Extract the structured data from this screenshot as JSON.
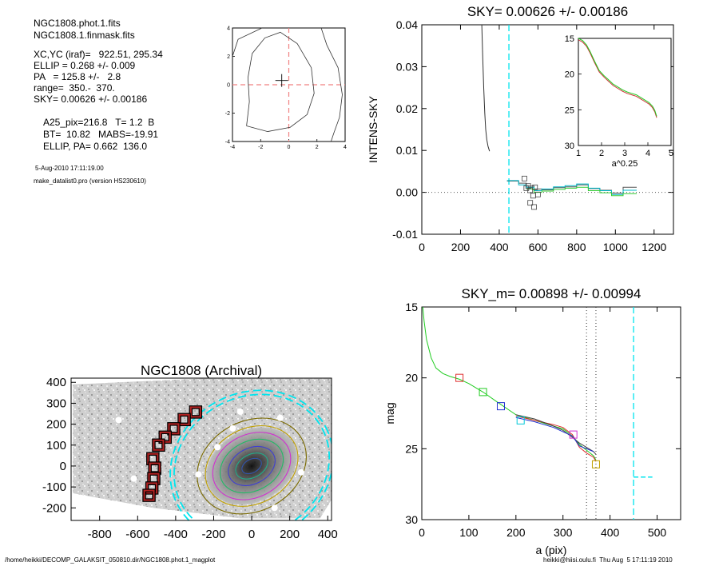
{
  "info": {
    "file1": "NGC1808.phot.1.fits",
    "file2": "NGC1808.1.finmask.fits",
    "xcyc": "XC,YC (iraf)=   922.51, 295.34",
    "ellip": "ELLIP = 0.268 +/- 0.009",
    "pa": "PA   = 125.8 +/-   2.8",
    "range": "range=  350.-  370.",
    "sky": "SKY= 0.00626 +/- 0.00186",
    "a25": "A25_pix=216.8   T= 1.2  B",
    "bt": "BT=  10.82   MABS=-19.91",
    "ellip_pa": "ELLIP, PA= 0.662  136.0",
    "date": "5-Aug-2010 17:11:19.00",
    "program": "make_datalist0.pro (version HS230610)"
  },
  "footer": {
    "left": "/home/heikki/DECOMP_GALAKSIT_050810.dir/NGC1808.phot.1_magplot",
    "right": "heikki@hiisi.oulu.fi  Thu Aug  5 17:11:19 2010"
  },
  "colors": {
    "sky_line": "#00e5ee",
    "red": "#e03030",
    "green": "#22cc22",
    "blue": "#2030d0",
    "magenta": "#d030d0",
    "olive": "#a09000",
    "dark_red": "#8b0000"
  },
  "chart_data": [
    {
      "id": "center-contour",
      "type": "contour",
      "title": "",
      "xlim": [
        -4,
        4
      ],
      "ylim": [
        -4,
        4
      ],
      "xticks": [
        -4,
        -2,
        0,
        2,
        4
      ],
      "yticks": [
        -4,
        -2,
        0,
        2,
        4
      ],
      "center_marker": [
        -0.5,
        0.3
      ],
      "dashed_lines": {
        "x": 0,
        "y": 0
      }
    },
    {
      "id": "intens-sky",
      "type": "line",
      "title": "SKY= 0.00626 +/- 0.00186",
      "xlabel": "",
      "ylabel": "INTENS-SKY",
      "xlim": [
        0,
        1300
      ],
      "ylim": [
        -0.01,
        0.04
      ],
      "xticks": [
        0,
        200,
        400,
        600,
        800,
        1000,
        1200
      ],
      "yticks": [
        -0.01,
        0.0,
        0.01,
        0.02,
        0.03,
        0.04
      ],
      "ytick_labels": [
        "-0.01",
        "0.00",
        "0.01",
        "0.02",
        "0.03",
        "0.04"
      ],
      "sky_marker_x": 450,
      "profile": {
        "x": [
          310,
          315,
          320,
          325,
          330,
          336,
          342,
          350
        ],
        "y": [
          0.04,
          0.032,
          0.025,
          0.019,
          0.015,
          0.0125,
          0.011,
          0.0098
        ]
      },
      "squares": [
        [
          530,
          0.0033
        ],
        [
          550,
          0.0015
        ],
        [
          560,
          0.0005
        ],
        [
          575,
          -0.0008
        ],
        [
          585,
          0.0012
        ],
        [
          600,
          -0.0005
        ],
        [
          560,
          -0.0025
        ],
        [
          580,
          -0.0035
        ],
        [
          540,
          0.001
        ]
      ],
      "steps_series": [
        {
          "name": "",
          "color": "#555555",
          "x": [
            440,
            500,
            540,
            580,
            620,
            680,
            740,
            800,
            860,
            920,
            980,
            1040,
            1110
          ],
          "y": [
            0.0027,
            0.0022,
            0.0015,
            0.0008,
            0.0006,
            0.0011,
            0.0013,
            0.0018,
            0.0009,
            0.0005,
            -0.0002,
            0.0012,
            0.0012
          ]
        },
        {
          "name": "",
          "color": "#00b8c8",
          "x": [
            440,
            500,
            540,
            580,
            620,
            680,
            740,
            800,
            860,
            920,
            980,
            1040,
            1110
          ],
          "y": [
            0.0028,
            0.0018,
            0.0012,
            0.0004,
            0.0008,
            0.0013,
            0.0016,
            0.002,
            0.001,
            0.0004,
            -0.0005,
            0.0005,
            0.0005
          ]
        },
        {
          "name": "",
          "color": "#33cc33",
          "x": [
            540,
            580,
            620,
            680,
            740,
            800,
            860,
            920,
            980,
            1040,
            1110
          ],
          "y": [
            0.0008,
            0.0,
            0.0003,
            0.0007,
            0.001,
            0.0012,
            0.0004,
            -0.0001,
            -0.0008,
            -0.0003,
            -0.0003
          ]
        }
      ],
      "inset": {
        "xlabel": "a^0.25",
        "xlim": [
          1,
          5
        ],
        "ylim": [
          30,
          15
        ],
        "xticks": [
          1,
          2,
          3,
          4,
          5
        ],
        "yticks": [
          15,
          20,
          25,
          30
        ],
        "x": [
          1.0,
          1.18,
          1.35,
          1.5,
          1.7,
          1.9,
          2.1,
          2.3,
          2.5,
          2.7,
          2.9,
          3.1,
          3.3,
          3.5,
          3.7,
          3.9,
          4.05,
          4.2,
          4.3,
          4.38
        ],
        "y": [
          15.0,
          15.3,
          15.9,
          16.8,
          18.2,
          19.5,
          20.2,
          20.8,
          21.4,
          21.8,
          22.2,
          22.5,
          22.7,
          22.9,
          23.3,
          23.7,
          24.0,
          24.5,
          25.1,
          25.9
        ]
      }
    },
    {
      "id": "galaxy-image",
      "type": "image",
      "title": "NGC1808 (Archival)",
      "xlim": [
        -950,
        420
      ],
      "ylim": [
        -260,
        420
      ],
      "xticks": [
        -800,
        -600,
        -400,
        -200,
        0,
        200,
        400
      ],
      "yticks": [
        -200,
        -100,
        0,
        100,
        200,
        300,
        400
      ],
      "ellipses": [
        {
          "a": 420,
          "b": 330,
          "rot_deg": -28,
          "color": "#00e5ee",
          "dashed": true
        },
        {
          "a": 440,
          "b": 350,
          "rot_deg": -28,
          "color": "#00e5ee",
          "dashed": true
        },
        {
          "a": 300,
          "b": 215,
          "rot_deg": -28,
          "color": "#7a6a00",
          "dashed": false
        },
        {
          "a": 255,
          "b": 180,
          "rot_deg": -28,
          "color": "#c0a000",
          "dashed": false
        },
        {
          "a": 215,
          "b": 150,
          "rot_deg": -28,
          "color": "#d030d0",
          "dashed": false
        },
        {
          "a": 175,
          "b": 118,
          "rot_deg": -28,
          "color": "#22bb66",
          "dashed": false
        },
        {
          "a": 130,
          "b": 85,
          "rot_deg": -28,
          "color": "#4040d0",
          "dashed": false
        },
        {
          "a": 90,
          "b": 55,
          "rot_deg": -28,
          "color": "#22aa88",
          "dashed": false
        },
        {
          "a": 55,
          "b": 32,
          "rot_deg": -28,
          "color": "#3355aa",
          "dashed": false
        }
      ],
      "mask_boxes": [
        [
          -295,
          258
        ],
        [
          -355,
          222
        ],
        [
          -410,
          178
        ],
        [
          -455,
          138
        ],
        [
          -490,
          100
        ],
        [
          -520,
          35
        ],
        [
          -510,
          -10
        ],
        [
          -515,
          -60
        ],
        [
          -525,
          -105
        ],
        [
          -540,
          -140
        ]
      ]
    },
    {
      "id": "mag-profile",
      "type": "line",
      "title": "SKY_m=  0.00898 +/- 0.00994",
      "xlabel": "a (pix)",
      "ylabel": "mag",
      "xlim": [
        0,
        550
      ],
      "ylim": [
        30,
        15
      ],
      "xticks": [
        0,
        100,
        200,
        300,
        400,
        500
      ],
      "yticks": [
        15,
        20,
        25,
        30
      ],
      "vlines_dotted": [
        350,
        370
      ],
      "sky_marker_x": 450,
      "sky_segment": {
        "x": [
          450,
          490
        ],
        "y": 27
      },
      "series": [
        {
          "name": "",
          "color": "#22cc22",
          "x": [
            2,
            5,
            10,
            20,
            30,
            45,
            60,
            80,
            100,
            130,
            160,
            200,
            240,
            280,
            300,
            320,
            335,
            350,
            365,
            370
          ],
          "y": [
            15.0,
            16.0,
            17.3,
            18.6,
            19.3,
            19.7,
            19.9,
            20.1,
            20.4,
            21.0,
            21.7,
            22.6,
            23.0,
            23.4,
            23.6,
            24.1,
            24.7,
            25.1,
            25.5,
            25.8
          ]
        },
        {
          "name": "",
          "color": "#e03030",
          "x": [
            200,
            240,
            280,
            300,
            320,
            335,
            350,
            365,
            370
          ],
          "y": [
            22.7,
            23.0,
            23.3,
            23.5,
            24.0,
            24.9,
            25.3,
            25.6,
            25.9
          ]
        },
        {
          "name": "",
          "color": "#444444",
          "x": [
            200,
            240,
            280,
            300,
            320,
            335,
            350,
            365,
            370
          ],
          "y": [
            22.6,
            22.9,
            23.4,
            23.7,
            24.2,
            24.6,
            24.9,
            25.2,
            25.4
          ]
        },
        {
          "name": "",
          "color": "#2030d0",
          "x": [
            200,
            240,
            280,
            300,
            320,
            335,
            350,
            365
          ],
          "y": [
            22.8,
            23.1,
            23.5,
            23.8,
            24.1,
            24.8,
            25.0,
            25.2
          ]
        }
      ],
      "markers": [
        {
          "x": 80,
          "y": 20.0,
          "color": "#e03030"
        },
        {
          "x": 130,
          "y": 21.0,
          "color": "#22cc22"
        },
        {
          "x": 168,
          "y": 22.0,
          "color": "#2030d0"
        },
        {
          "x": 210,
          "y": 23.0,
          "color": "#00c8d8"
        },
        {
          "x": 322,
          "y": 24.0,
          "color": "#d030d0"
        },
        {
          "x": 370,
          "y": 26.1,
          "color": "#c0a000"
        }
      ]
    }
  ]
}
